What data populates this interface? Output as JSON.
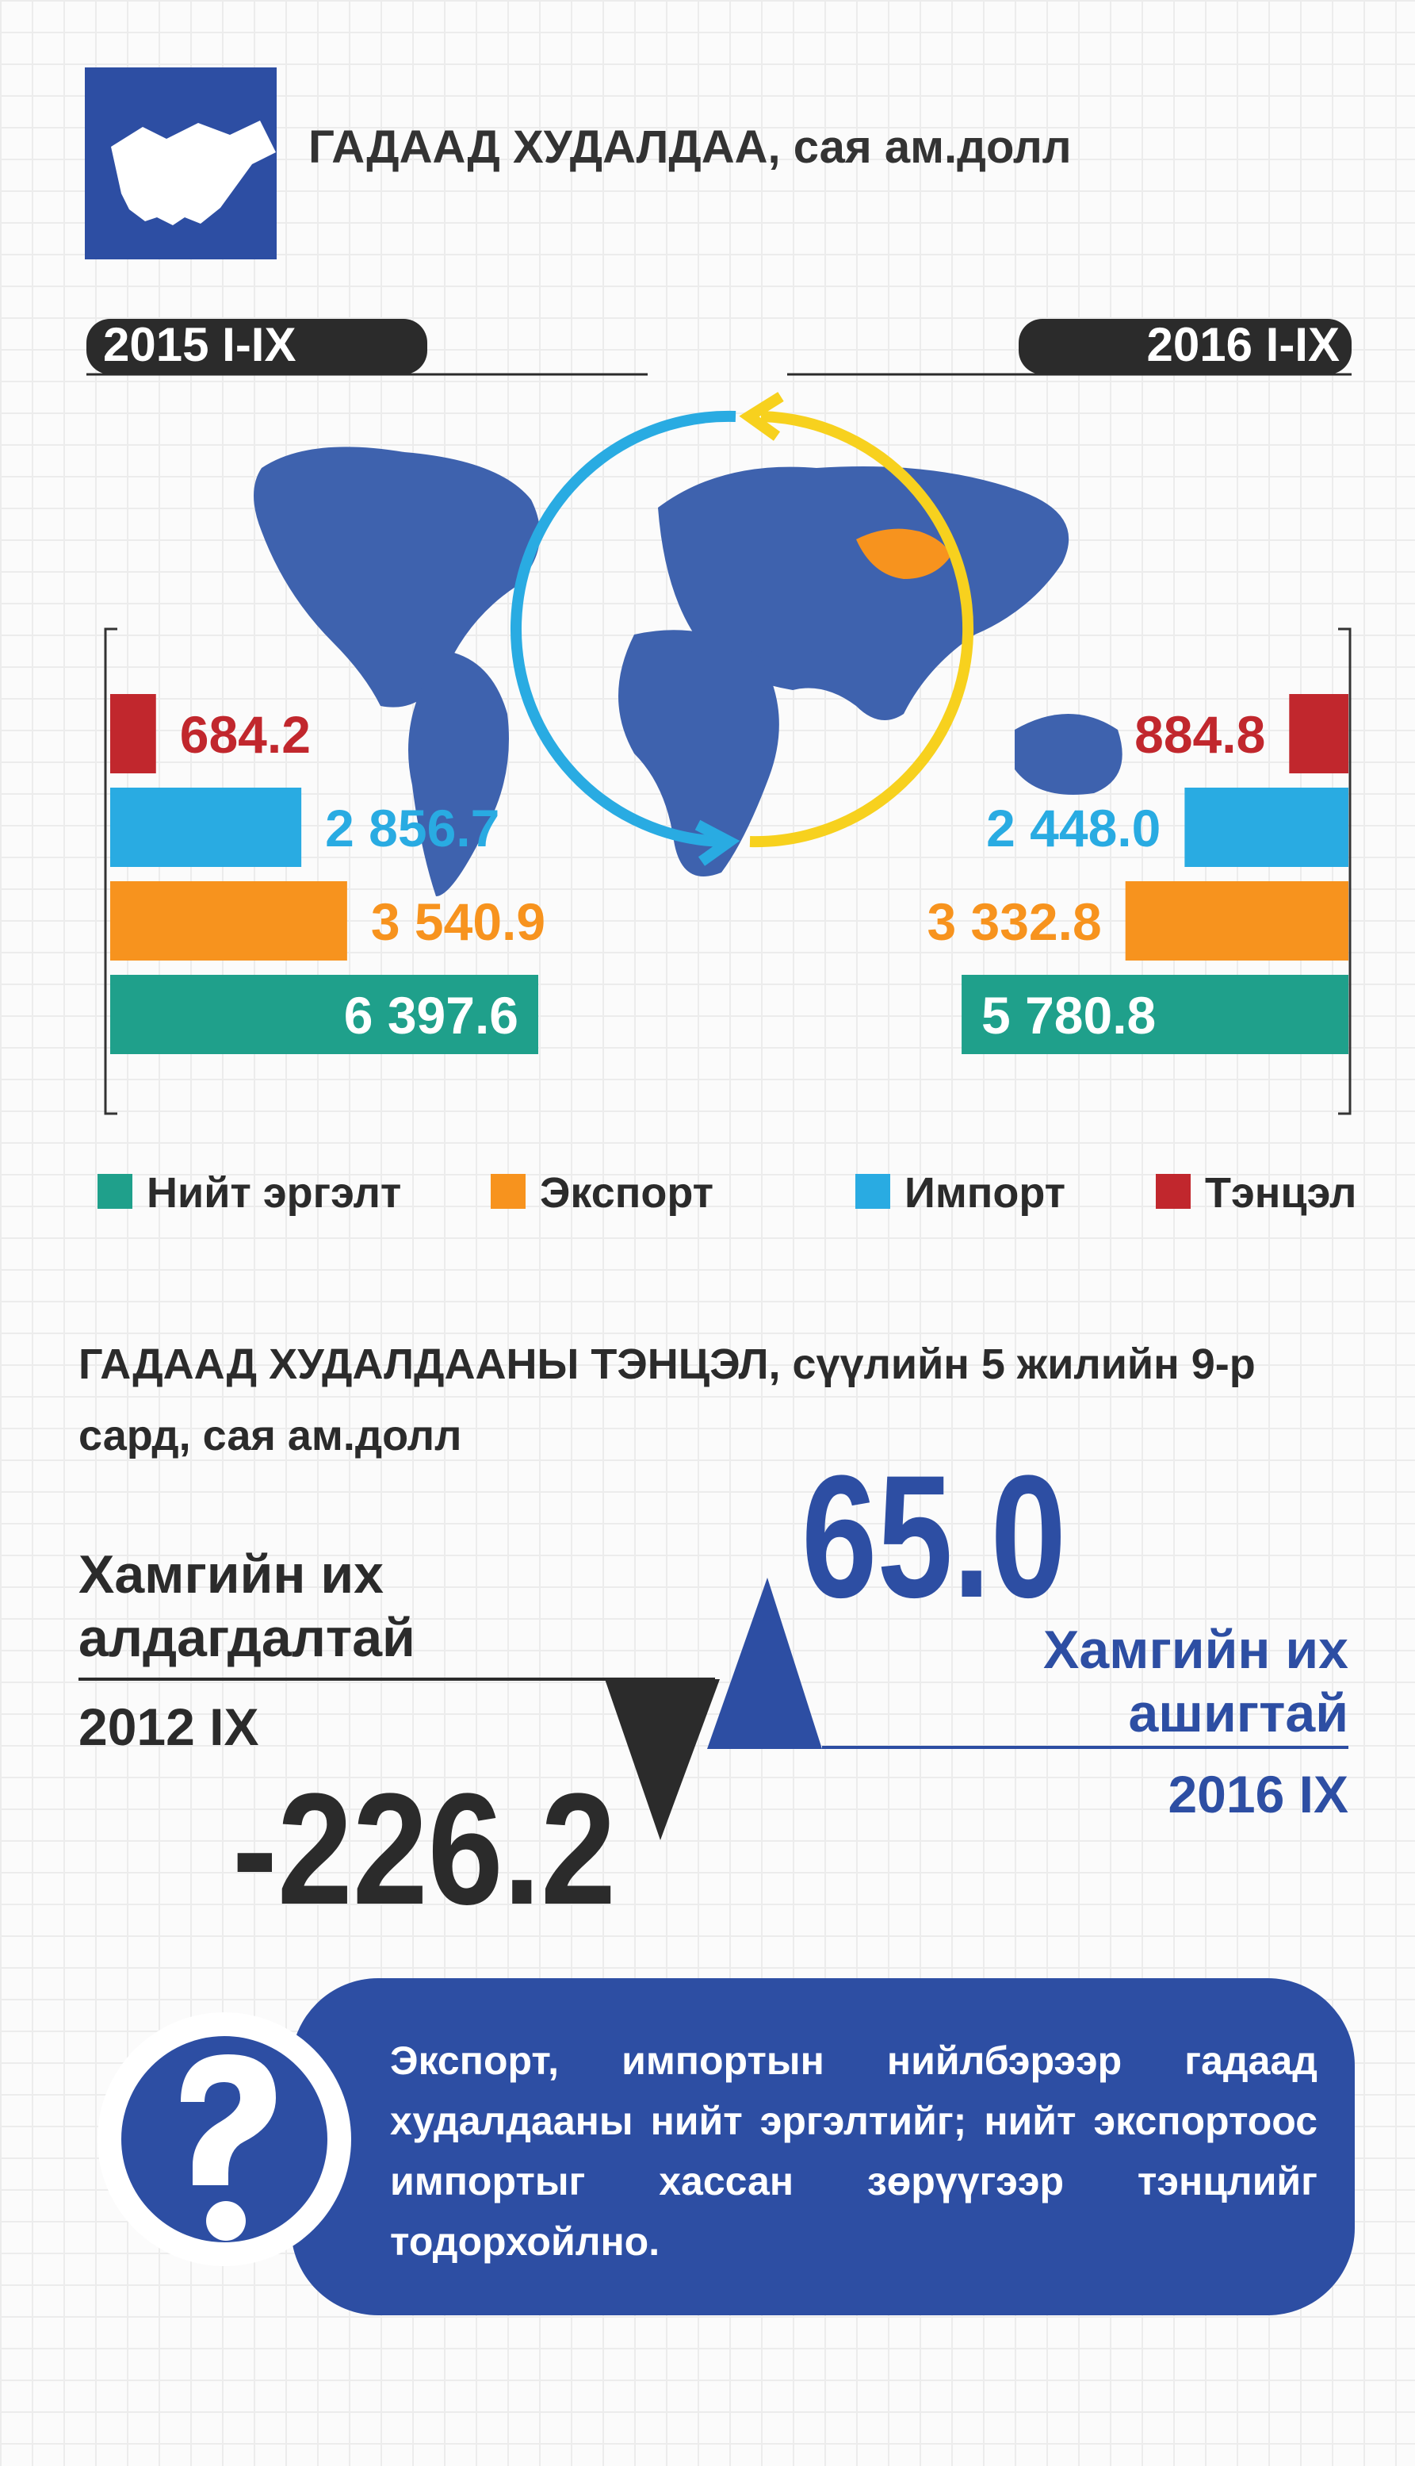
{
  "header": {
    "title": "ГАДААД ХУДАЛДАА, сая ам.долл"
  },
  "series": [
    {
      "name": "Нийт эргэлт",
      "color": "#1fa08b"
    },
    {
      "name": "Экспорт",
      "color": "#f7931e"
    },
    {
      "name": "Импорт",
      "color": "#29abe2"
    },
    {
      "name": "Тэнцэл",
      "color": "#c1272d"
    }
  ],
  "panels": [
    {
      "label": "2015 I-IX",
      "values": [
        6397.6,
        3540.9,
        2856.7,
        684.2
      ],
      "value_labels": [
        "6 397.6",
        "3 540.9",
        "2 856.7",
        "684.2"
      ]
    },
    {
      "label": "2016 I-IX",
      "values": [
        5780.8,
        3332.8,
        2448.0,
        884.8
      ],
      "value_labels": [
        "5 780.8",
        "3 332.8",
        "2 448.0",
        "884.8"
      ]
    }
  ],
  "balance": {
    "title": "ГАДААД ХУДАЛДААНЫ ТЭНЦЭЛ, сүүлийн 5 жилийн 9-р сард, сая ам.долл",
    "min": {
      "label": "Хамгийн их алдагдалтай",
      "period": "2012 IX",
      "value": -226.2
    },
    "max": {
      "label": "Хамгийн их ашигтай",
      "period": "2016 IX",
      "value": 65.0,
      "value_label": "65.0"
    }
  },
  "note": {
    "text": "Экспорт, импортын нийлбэрээр гадаад худалдааны нийт эргэлтийг; нийт экспортоос импортыг хассан зөрүүгээр тэнцлийг тодорхойлно."
  }
}
